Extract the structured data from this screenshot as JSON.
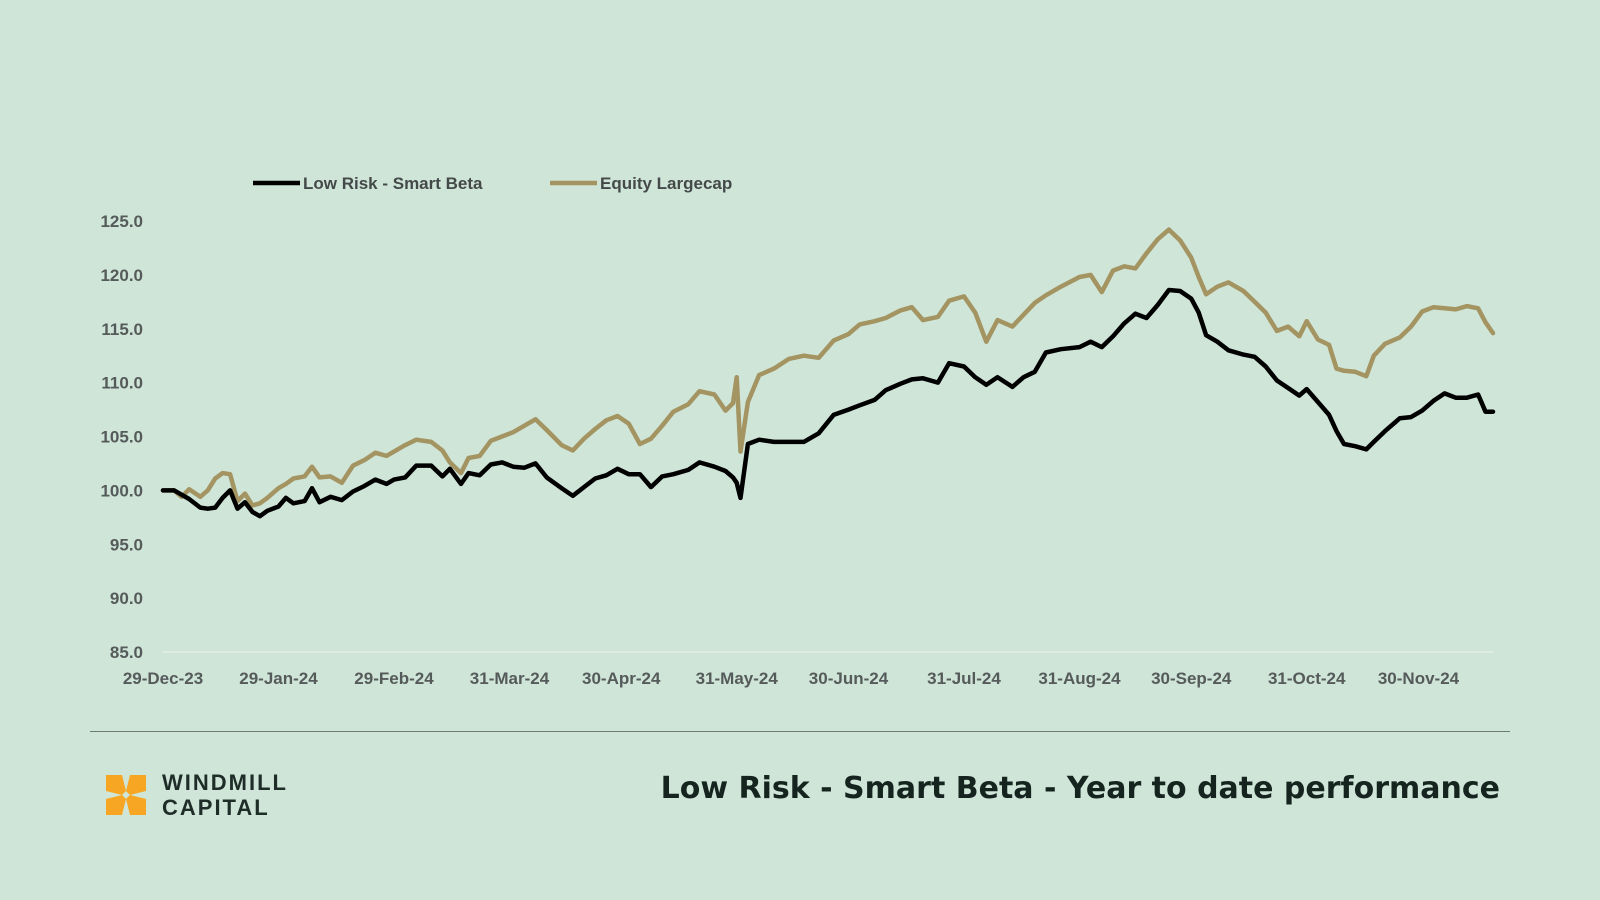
{
  "footer": {
    "title": "Low Risk - Smart Beta - Year to date performance",
    "brand_line1": "WINDMILL",
    "brand_line2": "CAPITAL"
  },
  "colors": {
    "background": "#cfe5d8",
    "low_risk": "#000000",
    "equity": "#a39461",
    "logo": "#f6a623"
  },
  "chart_data": {
    "type": "line",
    "title": "",
    "xlabel": "",
    "ylabel": "",
    "ylim": [
      85,
      125
    ],
    "yticks": [
      "85.0",
      "90.0",
      "95.0",
      "100.0",
      "105.0",
      "110.0",
      "115.0",
      "120.0",
      "125.0"
    ],
    "xlim": [
      "2023-12-29",
      "2024-12-20"
    ],
    "xticks": [
      {
        "date": "2023-12-29",
        "label": "29-Dec-23"
      },
      {
        "date": "2024-01-29",
        "label": "29-Jan-24"
      },
      {
        "date": "2024-02-29",
        "label": "29-Feb-24"
      },
      {
        "date": "2024-03-31",
        "label": "31-Mar-24"
      },
      {
        "date": "2024-04-30",
        "label": "30-Apr-24"
      },
      {
        "date": "2024-05-31",
        "label": "31-May-24"
      },
      {
        "date": "2024-06-30",
        "label": "30-Jun-24"
      },
      {
        "date": "2024-07-31",
        "label": "31-Jul-24"
      },
      {
        "date": "2024-08-31",
        "label": "31-Aug-24"
      },
      {
        "date": "2024-09-30",
        "label": "30-Sep-24"
      },
      {
        "date": "2024-10-31",
        "label": "31-Oct-24"
      },
      {
        "date": "2024-11-30",
        "label": "30-Nov-24"
      }
    ],
    "legend_position": "top-left",
    "grid": false,
    "series": [
      {
        "name": "Low Risk - Smart Beta",
        "color": "#000000",
        "points": [
          [
            "2023-12-29",
            100.0
          ],
          [
            "2024-01-01",
            100.0
          ],
          [
            "2024-01-03",
            99.6
          ],
          [
            "2024-01-05",
            99.2
          ],
          [
            "2024-01-08",
            98.4
          ],
          [
            "2024-01-10",
            98.3
          ],
          [
            "2024-01-12",
            98.4
          ],
          [
            "2024-01-14",
            99.3
          ],
          [
            "2024-01-16",
            100.0
          ],
          [
            "2024-01-18",
            98.3
          ],
          [
            "2024-01-20",
            98.9
          ],
          [
            "2024-01-22",
            98.0
          ],
          [
            "2024-01-24",
            97.6
          ],
          [
            "2024-01-26",
            98.1
          ],
          [
            "2024-01-29",
            98.5
          ],
          [
            "2024-01-31",
            99.3
          ],
          [
            "2024-02-02",
            98.8
          ],
          [
            "2024-02-05",
            99.0
          ],
          [
            "2024-02-07",
            100.2
          ],
          [
            "2024-02-09",
            98.9
          ],
          [
            "2024-02-12",
            99.4
          ],
          [
            "2024-02-15",
            99.1
          ],
          [
            "2024-02-18",
            99.9
          ],
          [
            "2024-02-21",
            100.4
          ],
          [
            "2024-02-24",
            101.0
          ],
          [
            "2024-02-27",
            100.6
          ],
          [
            "2024-02-29",
            101.0
          ],
          [
            "2024-03-03",
            101.2
          ],
          [
            "2024-03-06",
            102.3
          ],
          [
            "2024-03-10",
            102.3
          ],
          [
            "2024-03-13",
            101.3
          ],
          [
            "2024-03-15",
            102.0
          ],
          [
            "2024-03-18",
            100.6
          ],
          [
            "2024-03-20",
            101.6
          ],
          [
            "2024-03-23",
            101.4
          ],
          [
            "2024-03-26",
            102.4
          ],
          [
            "2024-03-29",
            102.6
          ],
          [
            "2024-04-01",
            102.2
          ],
          [
            "2024-04-04",
            102.1
          ],
          [
            "2024-04-07",
            102.5
          ],
          [
            "2024-04-10",
            101.2
          ],
          [
            "2024-04-14",
            100.2
          ],
          [
            "2024-04-17",
            99.5
          ],
          [
            "2024-04-20",
            100.3
          ],
          [
            "2024-04-23",
            101.1
          ],
          [
            "2024-04-26",
            101.4
          ],
          [
            "2024-04-29",
            102.0
          ],
          [
            "2024-05-02",
            101.5
          ],
          [
            "2024-05-05",
            101.5
          ],
          [
            "2024-05-08",
            100.3
          ],
          [
            "2024-05-11",
            101.3
          ],
          [
            "2024-05-14",
            101.5
          ],
          [
            "2024-05-18",
            101.9
          ],
          [
            "2024-05-21",
            102.6
          ],
          [
            "2024-05-25",
            102.2
          ],
          [
            "2024-05-28",
            101.8
          ],
          [
            "2024-05-30",
            101.2
          ],
          [
            "2024-05-31",
            100.7
          ],
          [
            "2024-06-01",
            99.3
          ],
          [
            "2024-06-03",
            104.3
          ],
          [
            "2024-06-06",
            104.7
          ],
          [
            "2024-06-10",
            104.5
          ],
          [
            "2024-06-14",
            104.5
          ],
          [
            "2024-06-18",
            104.5
          ],
          [
            "2024-06-22",
            105.3
          ],
          [
            "2024-06-26",
            107.0
          ],
          [
            "2024-06-30",
            107.5
          ],
          [
            "2024-07-03",
            107.9
          ],
          [
            "2024-07-07",
            108.4
          ],
          [
            "2024-07-10",
            109.3
          ],
          [
            "2024-07-14",
            109.9
          ],
          [
            "2024-07-17",
            110.3
          ],
          [
            "2024-07-20",
            110.4
          ],
          [
            "2024-07-24",
            110.0
          ],
          [
            "2024-07-27",
            111.8
          ],
          [
            "2024-07-31",
            111.5
          ],
          [
            "2024-08-03",
            110.5
          ],
          [
            "2024-08-06",
            109.8
          ],
          [
            "2024-08-09",
            110.5
          ],
          [
            "2024-08-13",
            109.6
          ],
          [
            "2024-08-16",
            110.5
          ],
          [
            "2024-08-19",
            111.0
          ],
          [
            "2024-08-22",
            112.8
          ],
          [
            "2024-08-26",
            113.1
          ],
          [
            "2024-08-31",
            113.3
          ],
          [
            "2024-09-03",
            113.8
          ],
          [
            "2024-09-06",
            113.3
          ],
          [
            "2024-09-09",
            114.3
          ],
          [
            "2024-09-12",
            115.5
          ],
          [
            "2024-09-15",
            116.4
          ],
          [
            "2024-09-18",
            116.0
          ],
          [
            "2024-09-21",
            117.2
          ],
          [
            "2024-09-24",
            118.6
          ],
          [
            "2024-09-27",
            118.5
          ],
          [
            "2024-09-30",
            117.8
          ],
          [
            "2024-10-02",
            116.5
          ],
          [
            "2024-10-04",
            114.4
          ],
          [
            "2024-10-07",
            113.8
          ],
          [
            "2024-10-10",
            113.0
          ],
          [
            "2024-10-14",
            112.6
          ],
          [
            "2024-10-17",
            112.4
          ],
          [
            "2024-10-20",
            111.5
          ],
          [
            "2024-10-23",
            110.2
          ],
          [
            "2024-10-26",
            109.5
          ],
          [
            "2024-10-29",
            108.8
          ],
          [
            "2024-10-31",
            109.4
          ],
          [
            "2024-11-03",
            108.2
          ],
          [
            "2024-11-06",
            107.0
          ],
          [
            "2024-11-08",
            105.5
          ],
          [
            "2024-11-10",
            104.3
          ],
          [
            "2024-11-13",
            104.1
          ],
          [
            "2024-11-16",
            103.8
          ],
          [
            "2024-11-18",
            104.5
          ],
          [
            "2024-11-21",
            105.5
          ],
          [
            "2024-11-25",
            106.7
          ],
          [
            "2024-11-28",
            106.8
          ],
          [
            "2024-12-01",
            107.4
          ],
          [
            "2024-12-04",
            108.3
          ],
          [
            "2024-12-07",
            109.0
          ],
          [
            "2024-12-10",
            108.6
          ],
          [
            "2024-12-13",
            108.6
          ],
          [
            "2024-12-16",
            108.9
          ],
          [
            "2024-12-18",
            107.3
          ],
          [
            "2024-12-20",
            107.3
          ]
        ]
      },
      {
        "name": "Equity Largecap",
        "color": "#a39461",
        "points": [
          [
            "2023-12-29",
            100.0
          ],
          [
            "2024-01-01",
            100.0
          ],
          [
            "2024-01-03",
            99.4
          ],
          [
            "2024-01-05",
            100.1
          ],
          [
            "2024-01-08",
            99.4
          ],
          [
            "2024-01-10",
            100.0
          ],
          [
            "2024-01-12",
            101.1
          ],
          [
            "2024-01-14",
            101.6
          ],
          [
            "2024-01-16",
            101.5
          ],
          [
            "2024-01-18",
            99.0
          ],
          [
            "2024-01-20",
            99.7
          ],
          [
            "2024-01-22",
            98.6
          ],
          [
            "2024-01-24",
            98.8
          ],
          [
            "2024-01-26",
            99.3
          ],
          [
            "2024-01-29",
            100.2
          ],
          [
            "2024-01-31",
            100.6
          ],
          [
            "2024-02-02",
            101.1
          ],
          [
            "2024-02-05",
            101.3
          ],
          [
            "2024-02-07",
            102.2
          ],
          [
            "2024-02-09",
            101.2
          ],
          [
            "2024-02-12",
            101.3
          ],
          [
            "2024-02-15",
            100.7
          ],
          [
            "2024-02-18",
            102.3
          ],
          [
            "2024-02-21",
            102.8
          ],
          [
            "2024-02-24",
            103.5
          ],
          [
            "2024-02-27",
            103.2
          ],
          [
            "2024-02-29",
            103.6
          ],
          [
            "2024-03-03",
            104.2
          ],
          [
            "2024-03-06",
            104.7
          ],
          [
            "2024-03-10",
            104.5
          ],
          [
            "2024-03-13",
            103.7
          ],
          [
            "2024-03-15",
            102.6
          ],
          [
            "2024-03-18",
            101.6
          ],
          [
            "2024-03-20",
            103.0
          ],
          [
            "2024-03-23",
            103.2
          ],
          [
            "2024-03-26",
            104.6
          ],
          [
            "2024-03-29",
            105.0
          ],
          [
            "2024-04-01",
            105.4
          ],
          [
            "2024-04-04",
            106.0
          ],
          [
            "2024-04-07",
            106.6
          ],
          [
            "2024-04-10",
            105.6
          ],
          [
            "2024-04-14",
            104.2
          ],
          [
            "2024-04-17",
            103.7
          ],
          [
            "2024-04-20",
            104.8
          ],
          [
            "2024-04-23",
            105.7
          ],
          [
            "2024-04-26",
            106.5
          ],
          [
            "2024-04-29",
            106.9
          ],
          [
            "2024-05-02",
            106.2
          ],
          [
            "2024-05-05",
            104.3
          ],
          [
            "2024-05-08",
            104.8
          ],
          [
            "2024-05-11",
            106.0
          ],
          [
            "2024-05-14",
            107.3
          ],
          [
            "2024-05-18",
            108.0
          ],
          [
            "2024-05-21",
            109.2
          ],
          [
            "2024-05-25",
            108.9
          ],
          [
            "2024-05-28",
            107.4
          ],
          [
            "2024-05-30",
            108.1
          ],
          [
            "2024-05-31",
            110.5
          ],
          [
            "2024-06-01",
            103.6
          ],
          [
            "2024-06-03",
            108.2
          ],
          [
            "2024-06-06",
            110.7
          ],
          [
            "2024-06-10",
            111.3
          ],
          [
            "2024-06-14",
            112.2
          ],
          [
            "2024-06-18",
            112.5
          ],
          [
            "2024-06-22",
            112.3
          ],
          [
            "2024-06-26",
            113.9
          ],
          [
            "2024-06-30",
            114.5
          ],
          [
            "2024-07-03",
            115.4
          ],
          [
            "2024-07-07",
            115.7
          ],
          [
            "2024-07-10",
            116.0
          ],
          [
            "2024-07-14",
            116.7
          ],
          [
            "2024-07-17",
            117.0
          ],
          [
            "2024-07-20",
            115.8
          ],
          [
            "2024-07-24",
            116.1
          ],
          [
            "2024-07-27",
            117.6
          ],
          [
            "2024-07-31",
            118.0
          ],
          [
            "2024-08-03",
            116.5
          ],
          [
            "2024-08-06",
            113.8
          ],
          [
            "2024-08-09",
            115.8
          ],
          [
            "2024-08-13",
            115.2
          ],
          [
            "2024-08-16",
            116.3
          ],
          [
            "2024-08-19",
            117.4
          ],
          [
            "2024-08-22",
            118.1
          ],
          [
            "2024-08-26",
            118.9
          ],
          [
            "2024-08-31",
            119.8
          ],
          [
            "2024-09-03",
            120.0
          ],
          [
            "2024-09-06",
            118.4
          ],
          [
            "2024-09-09",
            120.4
          ],
          [
            "2024-09-12",
            120.8
          ],
          [
            "2024-09-15",
            120.6
          ],
          [
            "2024-09-18",
            122.0
          ],
          [
            "2024-09-21",
            123.3
          ],
          [
            "2024-09-24",
            124.2
          ],
          [
            "2024-09-27",
            123.2
          ],
          [
            "2024-09-30",
            121.6
          ],
          [
            "2024-10-02",
            119.8
          ],
          [
            "2024-10-04",
            118.2
          ],
          [
            "2024-10-07",
            118.9
          ],
          [
            "2024-10-10",
            119.3
          ],
          [
            "2024-10-14",
            118.5
          ],
          [
            "2024-10-17",
            117.5
          ],
          [
            "2024-10-20",
            116.5
          ],
          [
            "2024-10-23",
            114.8
          ],
          [
            "2024-10-26",
            115.2
          ],
          [
            "2024-10-29",
            114.3
          ],
          [
            "2024-10-31",
            115.7
          ],
          [
            "2024-11-03",
            114.0
          ],
          [
            "2024-11-06",
            113.5
          ],
          [
            "2024-11-08",
            111.3
          ],
          [
            "2024-11-10",
            111.1
          ],
          [
            "2024-11-13",
            111.0
          ],
          [
            "2024-11-16",
            110.6
          ],
          [
            "2024-11-18",
            112.5
          ],
          [
            "2024-11-21",
            113.6
          ],
          [
            "2024-11-25",
            114.2
          ],
          [
            "2024-11-28",
            115.2
          ],
          [
            "2024-12-01",
            116.6
          ],
          [
            "2024-12-04",
            117.0
          ],
          [
            "2024-12-07",
            116.9
          ],
          [
            "2024-12-10",
            116.8
          ],
          [
            "2024-12-13",
            117.1
          ],
          [
            "2024-12-16",
            116.9
          ],
          [
            "2024-12-18",
            115.6
          ],
          [
            "2024-12-20",
            114.6
          ]
        ]
      }
    ]
  }
}
